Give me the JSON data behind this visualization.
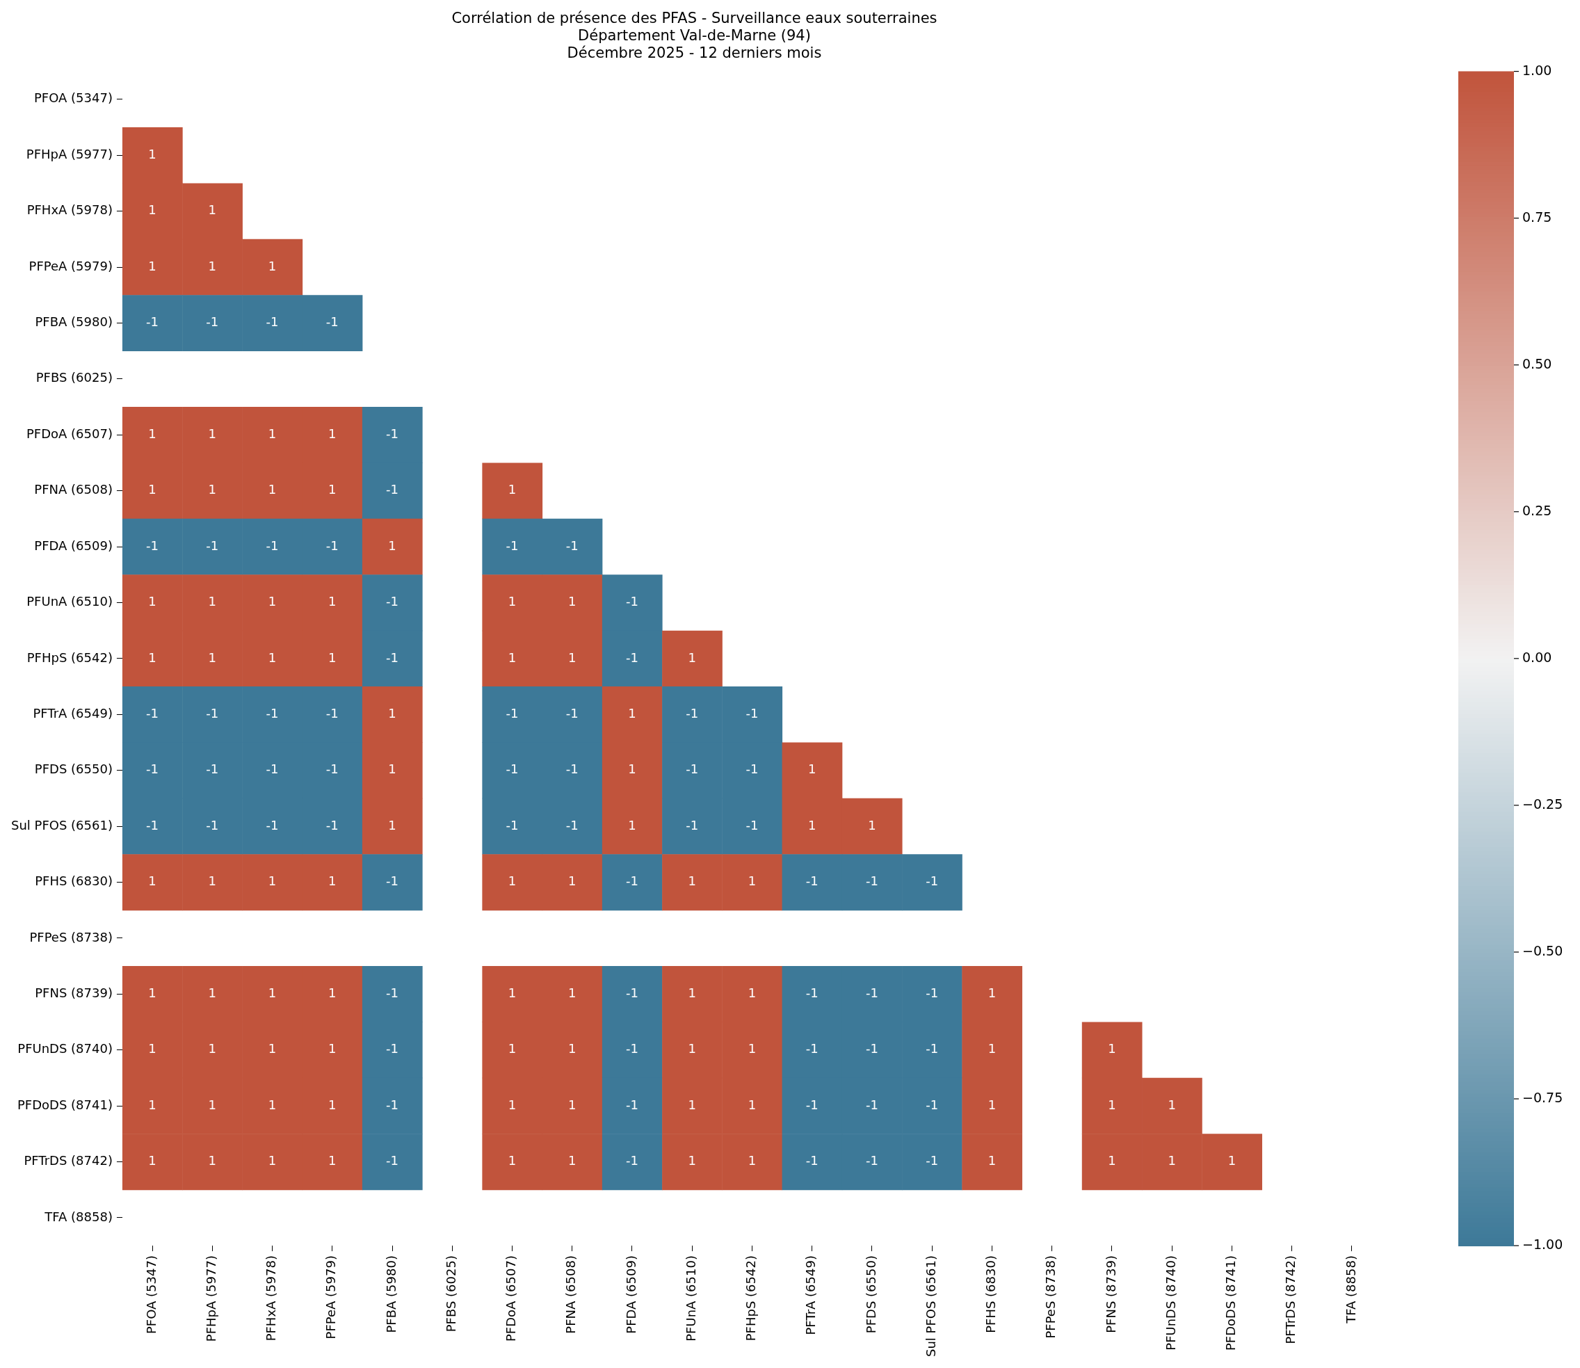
{
  "chart_data": {
    "type": "heatmap",
    "title": "Corrélation de présence des PFAS - Surveillance eaux souterraines\nDépartement Val-de-Marne (94)\nDécembre 2025 - 12 derniers mois",
    "categories": [
      "PFOA (5347)",
      "PFHpA (5977)",
      "PFHxA (5978)",
      "PFPeA (5979)",
      "PFBA (5980)",
      "PFBS (6025)",
      "PFDoA (6507)",
      "PFNA (6508)",
      "PFDA (6509)",
      "PFUnA (6510)",
      "PFHpS (6542)",
      "PFTrA (6549)",
      "PFDS (6550)",
      "Sul PFOS (6561)",
      "PFHS (6830)",
      "PFPeS (8738)",
      "PFNS (8739)",
      "PFUnDS (8740)",
      "PFDoDS (8741)",
      "PFTrDS (8742)",
      "TFA (8858)"
    ],
    "y_categories": [
      "PFOA (5347)",
      "PFHpA (5977)",
      "PFHxA (5978)",
      "PFPeA (5979)",
      "PFBA (5980)",
      "PFBS (6025)",
      "PFDoA (6507)",
      "PFNA (6508)",
      "PFDA (6509)",
      "PFUnA (6510)",
      "PFHpS (6542)",
      "PFTrA (6549)",
      "PFDS (6550)",
      "Sul PFOS (6561)",
      "PFHS (6830)",
      "PFPeS (8738)",
      "PFNS (8739)",
      "PFUnDS (8740)",
      "PFDoDS (8741)",
      "PFTrDS (8742)",
      "TFA (8858)"
    ],
    "cells": [
      [
        null,
        null,
        null,
        null,
        null,
        null,
        null,
        null,
        null,
        null,
        null,
        null,
        null,
        null,
        null,
        null,
        null,
        null,
        null,
        null,
        null
      ],
      [
        1,
        null,
        null,
        null,
        null,
        null,
        null,
        null,
        null,
        null,
        null,
        null,
        null,
        null,
        null,
        null,
        null,
        null,
        null,
        null,
        null
      ],
      [
        1,
        1,
        null,
        null,
        null,
        null,
        null,
        null,
        null,
        null,
        null,
        null,
        null,
        null,
        null,
        null,
        null,
        null,
        null,
        null,
        null
      ],
      [
        1,
        1,
        1,
        null,
        null,
        null,
        null,
        null,
        null,
        null,
        null,
        null,
        null,
        null,
        null,
        null,
        null,
        null,
        null,
        null,
        null
      ],
      [
        -1,
        -1,
        -1,
        -1,
        null,
        null,
        null,
        null,
        null,
        null,
        null,
        null,
        null,
        null,
        null,
        null,
        null,
        null,
        null,
        null,
        null
      ],
      [
        null,
        null,
        null,
        null,
        null,
        null,
        null,
        null,
        null,
        null,
        null,
        null,
        null,
        null,
        null,
        null,
        null,
        null,
        null,
        null,
        null
      ],
      [
        1,
        1,
        1,
        1,
        -1,
        null,
        null,
        null,
        null,
        null,
        null,
        null,
        null,
        null,
        null,
        null,
        null,
        null,
        null,
        null,
        null
      ],
      [
        1,
        1,
        1,
        1,
        -1,
        null,
        1,
        null,
        null,
        null,
        null,
        null,
        null,
        null,
        null,
        null,
        null,
        null,
        null,
        null,
        null
      ],
      [
        -1,
        -1,
        -1,
        -1,
        1,
        null,
        -1,
        -1,
        null,
        null,
        null,
        null,
        null,
        null,
        null,
        null,
        null,
        null,
        null,
        null,
        null
      ],
      [
        1,
        1,
        1,
        1,
        -1,
        null,
        1,
        1,
        -1,
        null,
        null,
        null,
        null,
        null,
        null,
        null,
        null,
        null,
        null,
        null,
        null
      ],
      [
        1,
        1,
        1,
        1,
        -1,
        null,
        1,
        1,
        -1,
        1,
        null,
        null,
        null,
        null,
        null,
        null,
        null,
        null,
        null,
        null,
        null
      ],
      [
        -1,
        -1,
        -1,
        -1,
        1,
        null,
        -1,
        -1,
        1,
        -1,
        -1,
        null,
        null,
        null,
        null,
        null,
        null,
        null,
        null,
        null,
        null
      ],
      [
        -1,
        -1,
        -1,
        -1,
        1,
        null,
        -1,
        -1,
        1,
        -1,
        -1,
        1,
        null,
        null,
        null,
        null,
        null,
        null,
        null,
        null,
        null
      ],
      [
        -1,
        -1,
        -1,
        -1,
        1,
        null,
        -1,
        -1,
        1,
        -1,
        -1,
        1,
        1,
        null,
        null,
        null,
        null,
        null,
        null,
        null,
        null
      ],
      [
        1,
        1,
        1,
        1,
        -1,
        null,
        1,
        1,
        -1,
        1,
        1,
        -1,
        -1,
        -1,
        null,
        null,
        null,
        null,
        null,
        null,
        null
      ],
      [
        null,
        null,
        null,
        null,
        null,
        null,
        null,
        null,
        null,
        null,
        null,
        null,
        null,
        null,
        null,
        null,
        null,
        null,
        null,
        null,
        null
      ],
      [
        1,
        1,
        1,
        1,
        -1,
        null,
        1,
        1,
        -1,
        1,
        1,
        -1,
        -1,
        -1,
        1,
        null,
        null,
        null,
        null,
        null,
        null
      ],
      [
        1,
        1,
        1,
        1,
        -1,
        null,
        1,
        1,
        -1,
        1,
        1,
        -1,
        -1,
        -1,
        1,
        null,
        1,
        null,
        null,
        null,
        null
      ],
      [
        1,
        1,
        1,
        1,
        -1,
        null,
        1,
        1,
        -1,
        1,
        1,
        -1,
        -1,
        -1,
        1,
        null,
        1,
        1,
        null,
        null,
        null
      ],
      [
        1,
        1,
        1,
        1,
        -1,
        null,
        1,
        1,
        -1,
        1,
        1,
        -1,
        -1,
        -1,
        1,
        null,
        1,
        1,
        1,
        null,
        null
      ],
      [
        null,
        null,
        null,
        null,
        null,
        null,
        null,
        null,
        null,
        null,
        null,
        null,
        null,
        null,
        null,
        null,
        null,
        null,
        null,
        null,
        null
      ]
    ],
    "clim": [
      -1,
      1
    ],
    "cticks": [
      {
        "value": -1,
        "label": "−1.00"
      },
      {
        "value": -0.75,
        "label": "−0.75"
      },
      {
        "value": -0.5,
        "label": "−0.50"
      },
      {
        "value": -0.25,
        "label": "−0.25"
      },
      {
        "value": 0,
        "label": "0.00"
      },
      {
        "value": 0.25,
        "label": "0.25"
      },
      {
        "value": 0.5,
        "label": "0.50"
      },
      {
        "value": 0.75,
        "label": "0.75"
      },
      {
        "value": 1,
        "label": "1.00"
      }
    ],
    "data_labels": true
  }
}
